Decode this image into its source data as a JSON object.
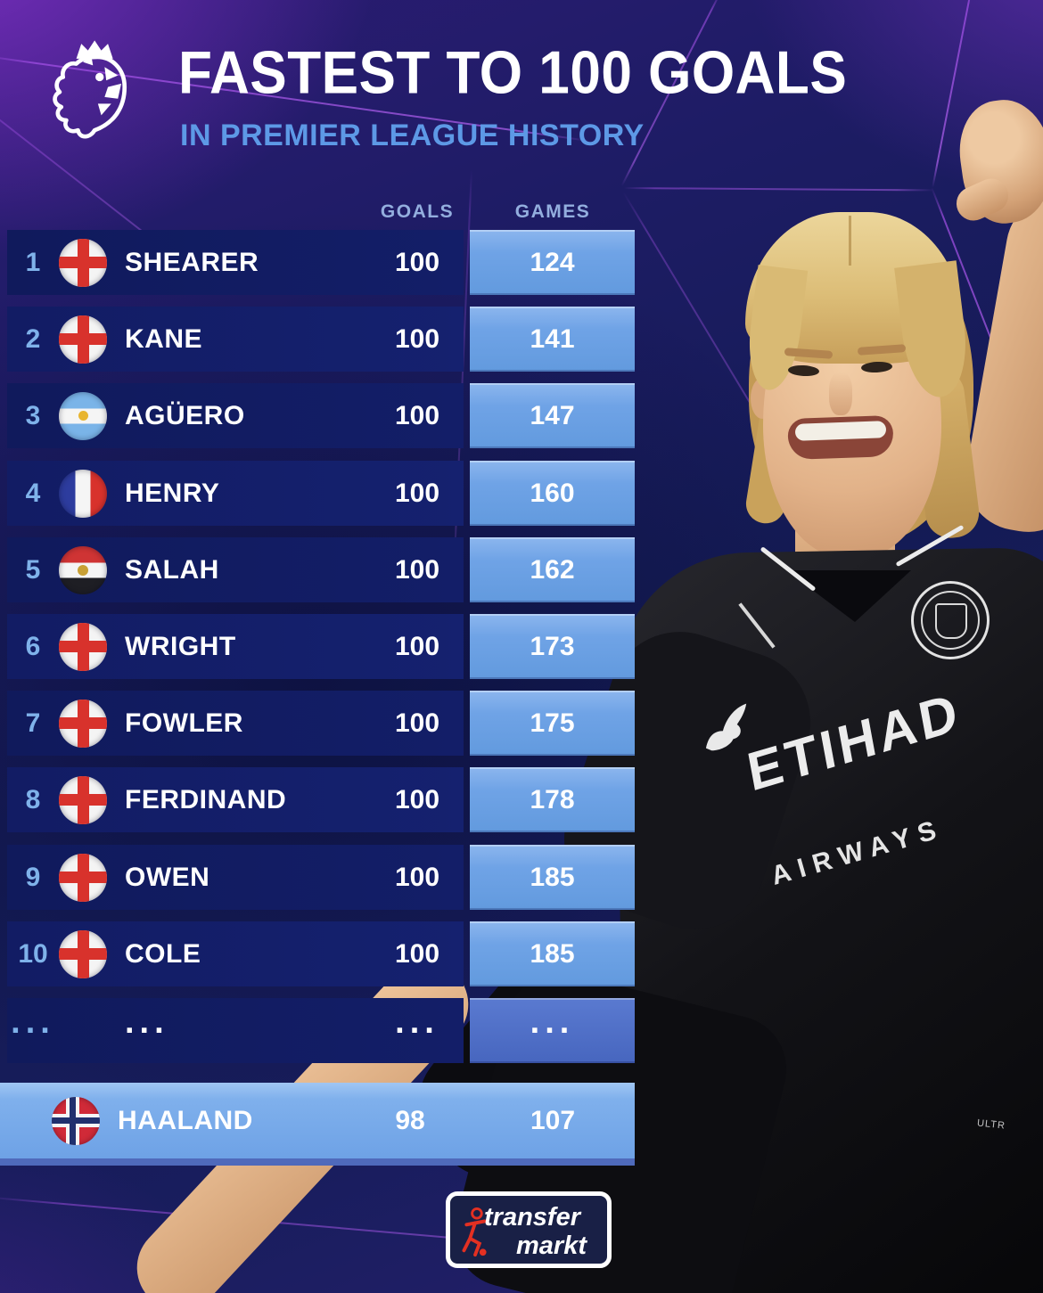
{
  "header": {
    "title": "FASTEST TO 100 GOALS",
    "subtitle": "IN PREMIER LEAGUE HISTORY",
    "logo": "premier-league-lion"
  },
  "table": {
    "columns": {
      "goals": "GOALS",
      "games": "GAMES"
    },
    "rows": [
      {
        "rank": "1",
        "country": "england",
        "name": "SHEARER",
        "goals": "100",
        "games": "124"
      },
      {
        "rank": "2",
        "country": "england",
        "name": "KANE",
        "goals": "100",
        "games": "141"
      },
      {
        "rank": "3",
        "country": "argentina",
        "name": "AGÜERO",
        "goals": "100",
        "games": "147"
      },
      {
        "rank": "4",
        "country": "france",
        "name": "HENRY",
        "goals": "100",
        "games": "160"
      },
      {
        "rank": "5",
        "country": "egypt",
        "name": "SALAH",
        "goals": "100",
        "games": "162"
      },
      {
        "rank": "6",
        "country": "england",
        "name": "WRIGHT",
        "goals": "100",
        "games": "173"
      },
      {
        "rank": "7",
        "country": "england",
        "name": "FOWLER",
        "goals": "100",
        "games": "175"
      },
      {
        "rank": "8",
        "country": "england",
        "name": "FERDINAND",
        "goals": "100",
        "games": "178"
      },
      {
        "rank": "9",
        "country": "england",
        "name": "OWEN",
        "goals": "100",
        "games": "185"
      },
      {
        "rank": "10",
        "country": "england",
        "name": "COLE",
        "goals": "100",
        "games": "185"
      },
      {
        "rank": "...",
        "country": null,
        "name": "...",
        "goals": "...",
        "games": "..."
      }
    ],
    "highlight_row": {
      "country": "norway",
      "name": "HAALAND",
      "goals": "98",
      "games": "107"
    }
  },
  "figure": {
    "description": "Erling Haaland celebrating in black Manchester City away kit",
    "shirt_primary": "ETIHAD",
    "shirt_secondary": "AIRWAYS",
    "shirt_small_text": "ULTR"
  },
  "footer": {
    "brand_top": "transfer",
    "brand_bottom": "markt"
  },
  "colors": {
    "bg_navy": "#141b55",
    "bg_purple": "#7c2fc1",
    "row_navy": "#121c64",
    "games_cell_blue": "#6fa3e6",
    "highlight_blue": "#7fb0ec",
    "rank_blue": "#7fb2ea",
    "subtitle_blue": "#5d99e6",
    "column_header_blue": "#93aede",
    "brand_red": "#e33022"
  }
}
